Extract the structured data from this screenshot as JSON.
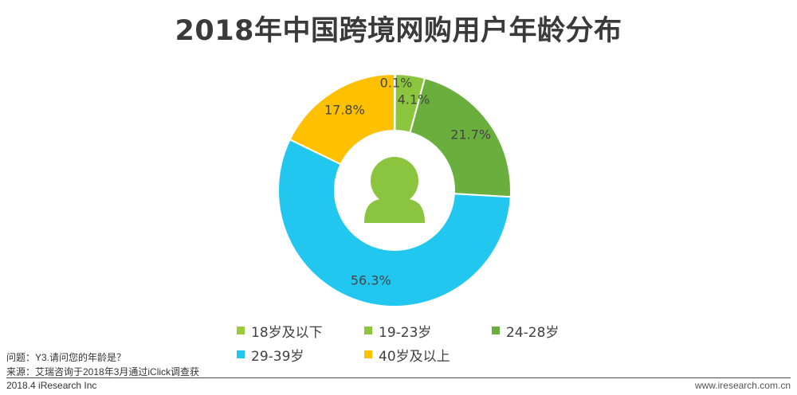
{
  "title": "2018年中国跨境网购用户年龄分布",
  "chart_data": {
    "type": "pie",
    "variant": "donut",
    "title": "2018年中国跨境网购用户年龄分布",
    "categories": [
      "18岁及以下",
      "19-23岁",
      "24-28岁",
      "29-39岁",
      "40岁及以上"
    ],
    "values": [
      0.1,
      4.1,
      21.7,
      56.3,
      17.8
    ],
    "labels": [
      "0.1%",
      "4.1%",
      "21.7%",
      "56.3%",
      "17.8%"
    ],
    "colors": [
      "#9BCB3C",
      "#8CC63F",
      "#6AAF3D",
      "#22C7F0",
      "#FFC000"
    ],
    "center_icon": "user-icon",
    "center_icon_color": "#8BC53F",
    "legend_position": "bottom"
  },
  "legend": [
    {
      "label": "18岁及以下",
      "color": "#9BCB3C"
    },
    {
      "label": "19-23岁",
      "color": "#8CC63F"
    },
    {
      "label": "24-28岁",
      "color": "#6AAF3D"
    },
    {
      "label": "29-39岁",
      "color": "#22C7F0"
    },
    {
      "label": "40岁及以上",
      "color": "#FFC000"
    }
  ],
  "footer": {
    "question": "问题：Y3.请问您的年龄是？",
    "source": "来源：艾瑞咨询于2018年3月通过iClick调查获",
    "copyright": "2018.4 iResearch Inc",
    "website": "www.iresearch.com.cn"
  }
}
